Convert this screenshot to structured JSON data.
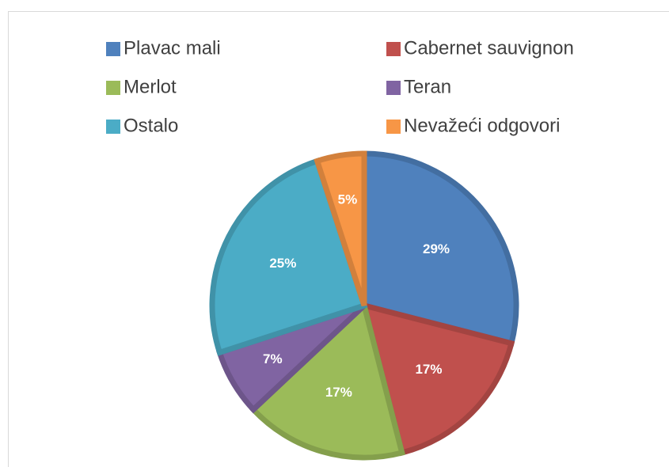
{
  "chart_data": {
    "type": "pie",
    "categories": [
      "Plavac mali",
      "Cabernet sauvignon",
      "Merlot",
      "Teran",
      "Ostalo",
      "Nevažeći odgovori"
    ],
    "values": [
      29,
      17,
      17,
      7,
      25,
      5
    ],
    "value_labels": [
      "29%",
      "17%",
      "17%",
      "7%",
      "25%",
      "5%"
    ],
    "colors": [
      "#4f81bd",
      "#c0504d",
      "#9bbb59",
      "#8064a2",
      "#4bacc6",
      "#f79646"
    ],
    "legend": "top"
  }
}
